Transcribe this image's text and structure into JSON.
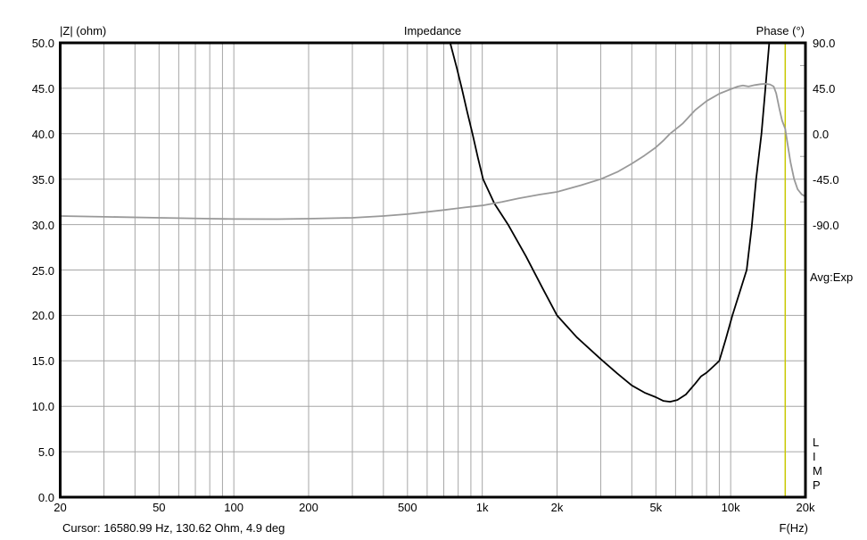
{
  "header": {
    "left_axis_title": "|Z| (ohm)",
    "chart_title": "Impedance",
    "right_axis_title": "Phase (°)"
  },
  "right_margin": {
    "averaging_label": "Avg:Exp",
    "app_label": "LIMP"
  },
  "footer": {
    "cursor_readout": "Cursor: 16580.99 Hz, 130.62 Ohm, 4.9 deg",
    "x_axis_title": "F(Hz)"
  },
  "chart_data": {
    "type": "line",
    "title": "Impedance",
    "background_color": "#ffffff",
    "grid_color": "#a6a6a6",
    "frame_color": "#000000",
    "x": {
      "scale": "log",
      "min": 20,
      "max": 20000,
      "major_ticks": [
        {
          "f": 20,
          "label": "20"
        },
        {
          "f": 50,
          "label": "50"
        },
        {
          "f": 100,
          "label": "100"
        },
        {
          "f": 200,
          "label": "200"
        },
        {
          "f": 500,
          "label": "500"
        },
        {
          "f": 1000,
          "label": "1k"
        },
        {
          "f": 2000,
          "label": "2k"
        },
        {
          "f": 5000,
          "label": "5k"
        },
        {
          "f": 10000,
          "label": "10k"
        },
        {
          "f": 20000,
          "label": "20k"
        }
      ],
      "minor_gridlines": [
        30,
        40,
        50,
        60,
        70,
        80,
        90,
        100,
        200,
        300,
        400,
        500,
        600,
        700,
        800,
        900,
        1000,
        2000,
        3000,
        4000,
        5000,
        6000,
        7000,
        8000,
        9000,
        10000
      ]
    },
    "left_axis": {
      "label": "|Z| (ohm)",
      "min": 0,
      "max": 50,
      "tick_step": 5,
      "tick_labels": [
        "50.0",
        "45.0",
        "40.0",
        "35.0",
        "30.0",
        "25.0",
        "20.0",
        "15.0",
        "10.0",
        "5.0",
        "0.0"
      ]
    },
    "right_axis": {
      "label": "Phase (°)",
      "min": -90,
      "max": 90,
      "tick_step": 45,
      "tick_labels": [
        "90.0",
        "45.0",
        "0.0",
        "-45.0",
        "-90.0"
      ],
      "mapped_left_range": [
        30,
        50
      ],
      "minor_tick_deg": [
        67.5,
        22.5,
        -22.5,
        -67.5
      ]
    },
    "series": [
      {
        "name": "impedance",
        "axis": "left",
        "unit": "ohm",
        "color": "#000000",
        "points": [
          [
            650,
            58
          ],
          [
            700,
            53.5
          ],
          [
            743,
            50
          ],
          [
            790,
            47.2
          ],
          [
            827,
            45
          ],
          [
            870,
            42.4
          ],
          [
            913,
            40
          ],
          [
            960,
            37.4
          ],
          [
            1008,
            35
          ],
          [
            1120,
            32.3
          ],
          [
            1270,
            30
          ],
          [
            1500,
            26.5
          ],
          [
            1750,
            23
          ],
          [
            2000,
            20
          ],
          [
            2400,
            17.6
          ],
          [
            3000,
            15.2
          ],
          [
            3500,
            13.6
          ],
          [
            4000,
            12.3
          ],
          [
            4500,
            11.5
          ],
          [
            5000,
            11
          ],
          [
            5350,
            10.6
          ],
          [
            5700,
            10.5
          ],
          [
            6100,
            10.7
          ],
          [
            6600,
            11.3
          ],
          [
            7200,
            12.5
          ],
          [
            7600,
            13.3
          ],
          [
            8000,
            13.7
          ],
          [
            8300,
            14.1
          ],
          [
            9000,
            15
          ],
          [
            9560,
            17.4
          ],
          [
            10160,
            20
          ],
          [
            11000,
            23
          ],
          [
            11600,
            25
          ],
          [
            12150,
            29.7
          ],
          [
            12660,
            35
          ],
          [
            13300,
            40
          ],
          [
            13800,
            45
          ],
          [
            14300,
            50
          ],
          [
            14500,
            53
          ]
        ]
      },
      {
        "name": "phase",
        "axis": "right",
        "unit": "deg",
        "color": "#999999",
        "points": [
          [
            20,
            -81.5
          ],
          [
            30,
            -82.3
          ],
          [
            50,
            -83.3
          ],
          [
            80,
            -84.2
          ],
          [
            100,
            -84.5
          ],
          [
            150,
            -84.6
          ],
          [
            200,
            -84.2
          ],
          [
            300,
            -83.3
          ],
          [
            400,
            -81.5
          ],
          [
            500,
            -79.7
          ],
          [
            700,
            -75.6
          ],
          [
            850,
            -73
          ],
          [
            1000,
            -71.1
          ],
          [
            1200,
            -67.5
          ],
          [
            1400,
            -64
          ],
          [
            1700,
            -60.3
          ],
          [
            2000,
            -57.6
          ],
          [
            2500,
            -51
          ],
          [
            3000,
            -45
          ],
          [
            3500,
            -37.8
          ],
          [
            4000,
            -29.7
          ],
          [
            4500,
            -21.6
          ],
          [
            5000,
            -13.5
          ],
          [
            5350,
            -7
          ],
          [
            5700,
            0
          ],
          [
            6400,
            9.9
          ],
          [
            7200,
            23.4
          ],
          [
            8000,
            32.4
          ],
          [
            9000,
            39.6
          ],
          [
            10000,
            44.1
          ],
          [
            10700,
            46.8
          ],
          [
            11200,
            47.7
          ],
          [
            11800,
            46.8
          ],
          [
            12500,
            48.2
          ],
          [
            13200,
            49.1
          ],
          [
            13800,
            49.4
          ],
          [
            14400,
            48.8
          ],
          [
            14900,
            46.8
          ],
          [
            15250,
            40
          ],
          [
            15700,
            25
          ],
          [
            16100,
            13
          ],
          [
            16580,
            4.9
          ],
          [
            17000,
            -12
          ],
          [
            17400,
            -28
          ],
          [
            18000,
            -45
          ],
          [
            18600,
            -55
          ],
          [
            19300,
            -60
          ],
          [
            20000,
            -62.2
          ]
        ]
      }
    ],
    "cursor": {
      "freq_hz": 16580.99,
      "impedance_ohm": 130.62,
      "phase_deg": 4.9,
      "color": "#c8c800"
    }
  }
}
